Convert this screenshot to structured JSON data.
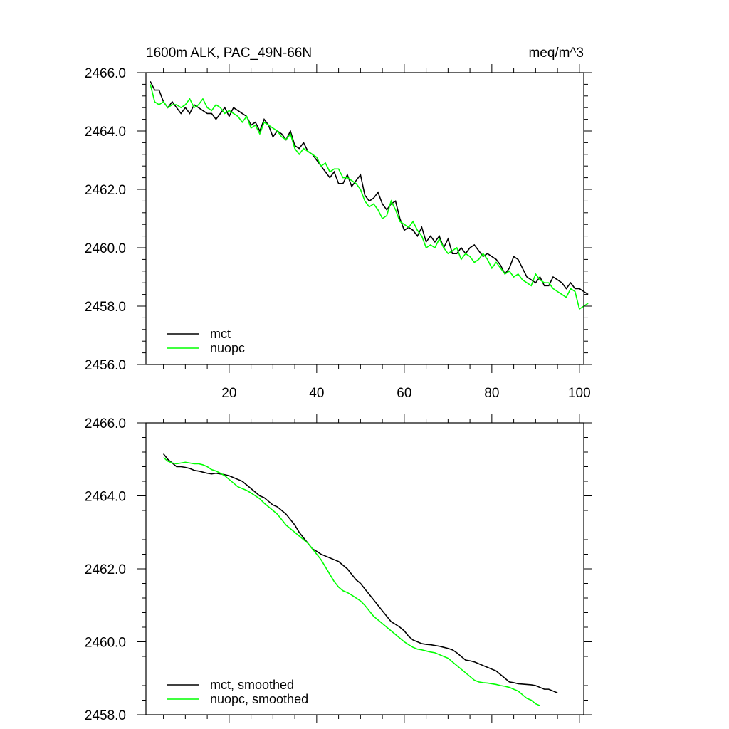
{
  "chart_data": [
    {
      "type": "line",
      "title": "1600m ALK, PAC_49N-66N",
      "units": "meq/m^3",
      "xlim": [
        1,
        101
      ],
      "ylim": [
        2456.0,
        2466.0
      ],
      "x_ticks": [
        20,
        40,
        60,
        80,
        100
      ],
      "y_ticks": [
        2456.0,
        2458.0,
        2460.0,
        2462.0,
        2464.0,
        2466.0
      ],
      "y_tick_labels": [
        "2456.0",
        "2458.0",
        "2460.0",
        "2462.0",
        "2464.0",
        "2466.0"
      ],
      "x_tick_labels": [
        "20",
        "40",
        "60",
        "80",
        "100"
      ],
      "legend": [
        "mct",
        "nuopc"
      ],
      "legend_position": "bottom-left",
      "x_start": 2,
      "x_step": 1,
      "series": [
        {
          "name": "mct",
          "color": "#000000",
          "values": [
            2465.7,
            2465.4,
            2465.4,
            2465.0,
            2464.8,
            2465.0,
            2464.8,
            2464.6,
            2464.8,
            2464.6,
            2464.9,
            2464.8,
            2464.7,
            2464.6,
            2464.6,
            2464.4,
            2464.6,
            2464.8,
            2464.5,
            2464.8,
            2464.7,
            2464.6,
            2464.5,
            2464.2,
            2464.3,
            2464.0,
            2464.4,
            2464.2,
            2463.8,
            2464.0,
            2463.9,
            2463.7,
            2464.0,
            2463.5,
            2463.4,
            2463.6,
            2463.3,
            2463.2,
            2463.0,
            2462.8,
            2462.6,
            2462.4,
            2462.6,
            2462.2,
            2462.2,
            2462.5,
            2462.1,
            2462.3,
            2462.5,
            2461.8,
            2461.6,
            2461.7,
            2461.9,
            2461.5,
            2461.3,
            2461.5,
            2461.6,
            2461.0,
            2460.6,
            2460.7,
            2460.6,
            2460.4,
            2460.7,
            2460.2,
            2460.4,
            2460.2,
            2460.4,
            2460.0,
            2460.3,
            2459.8,
            2459.8,
            2460.0,
            2459.8,
            2460.0,
            2460.1,
            2459.9,
            2459.7,
            2459.8,
            2459.7,
            2459.6,
            2459.4,
            2459.1,
            2459.3,
            2459.7,
            2459.6,
            2459.3,
            2459.0,
            2458.9,
            2458.8,
            2459.0,
            2458.7,
            2458.7,
            2459.0,
            2458.9,
            2458.8,
            2458.6,
            2458.8,
            2458.6,
            2458.6,
            2458.5,
            2458.4
          ]
        },
        {
          "name": "nuopc",
          "color": "#00ff00",
          "values": [
            2465.6,
            2465.0,
            2464.9,
            2465.0,
            2464.8,
            2464.9,
            2464.9,
            2464.8,
            2464.9,
            2465.1,
            2464.8,
            2464.9,
            2465.1,
            2464.8,
            2464.7,
            2464.9,
            2464.8,
            2464.6,
            2464.7,
            2464.6,
            2464.5,
            2464.3,
            2464.5,
            2464.1,
            2464.2,
            2463.9,
            2464.3,
            2464.2,
            2464.1,
            2464.0,
            2463.8,
            2463.7,
            2463.9,
            2463.4,
            2463.2,
            2463.4,
            2463.3,
            2463.2,
            2463.1,
            2462.8,
            2462.9,
            2462.6,
            2462.7,
            2462.7,
            2462.4,
            2462.4,
            2462.3,
            2462.2,
            2462.0,
            2461.6,
            2461.4,
            2461.5,
            2461.3,
            2461.0,
            2461.1,
            2461.6,
            2461.3,
            2460.9,
            2460.8,
            2460.7,
            2460.9,
            2460.6,
            2460.4,
            2460.0,
            2460.1,
            2460.0,
            2460.3,
            2460.0,
            2459.8,
            2459.9,
            2460.0,
            2459.6,
            2459.8,
            2459.7,
            2459.5,
            2459.6,
            2459.8,
            2459.6,
            2459.3,
            2459.5,
            2459.3,
            2459.1,
            2459.2,
            2459.0,
            2459.1,
            2458.9,
            2458.8,
            2458.7,
            2459.1,
            2458.9,
            2458.8,
            2458.8,
            2458.6,
            2458.5,
            2458.4,
            2458.3,
            2458.6,
            2458.5,
            2457.9,
            2458.0,
            2458.1
          ]
        }
      ]
    },
    {
      "type": "line",
      "title": "",
      "xlim": [
        1,
        101
      ],
      "ylim": [
        2458.0,
        2466.0
      ],
      "x_ticks": [
        20,
        40,
        60,
        80,
        100
      ],
      "y_ticks": [
        2458.0,
        2460.0,
        2462.0,
        2464.0,
        2466.0
      ],
      "y_tick_labels": [
        "2458.0",
        "2460.0",
        "2462.0",
        "2464.0",
        "2466.0"
      ],
      "legend": [
        "mct, smoothed",
        "nuopc, smoothed"
      ],
      "legend_position": "bottom-left",
      "x_start": 5,
      "x_step": 1,
      "series": [
        {
          "name": "mct, smoothed",
          "color": "#000000",
          "values": [
            2465.15,
            2465.0,
            2464.9,
            2464.8,
            2464.8,
            2464.78,
            2464.75,
            2464.7,
            2464.68,
            2464.65,
            2464.62,
            2464.6,
            2464.62,
            2464.6,
            2464.58,
            2464.55,
            2464.5,
            2464.45,
            2464.4,
            2464.3,
            2464.2,
            2464.1,
            2464.0,
            2463.95,
            2463.85,
            2463.75,
            2463.7,
            2463.6,
            2463.5,
            2463.35,
            2463.2,
            2463.0,
            2462.85,
            2462.7,
            2462.55,
            2462.48,
            2462.4,
            2462.35,
            2462.3,
            2462.25,
            2462.2,
            2462.1,
            2462.0,
            2461.85,
            2461.7,
            2461.6,
            2461.45,
            2461.3,
            2461.15,
            2461.0,
            2460.85,
            2460.7,
            2460.55,
            2460.48,
            2460.4,
            2460.3,
            2460.15,
            2460.05,
            2460.0,
            2459.95,
            2459.93,
            2459.92,
            2459.9,
            2459.88,
            2459.85,
            2459.82,
            2459.78,
            2459.7,
            2459.6,
            2459.5,
            2459.48,
            2459.45,
            2459.4,
            2459.35,
            2459.3,
            2459.25,
            2459.2,
            2459.1,
            2459.0,
            2458.9,
            2458.88,
            2458.85,
            2458.84,
            2458.83,
            2458.82,
            2458.8,
            2458.75,
            2458.7,
            2458.7,
            2458.65,
            2458.6
          ]
        },
        {
          "name": "nuopc, smoothed",
          "color": "#00ff00",
          "values": [
            2465.05,
            2464.95,
            2464.9,
            2464.88,
            2464.9,
            2464.92,
            2464.9,
            2464.88,
            2464.88,
            2464.85,
            2464.8,
            2464.72,
            2464.68,
            2464.62,
            2464.55,
            2464.45,
            2464.35,
            2464.25,
            2464.2,
            2464.15,
            2464.08,
            2464.0,
            2463.92,
            2463.8,
            2463.7,
            2463.6,
            2463.5,
            2463.35,
            2463.2,
            2463.1,
            2463.0,
            2462.9,
            2462.8,
            2462.7,
            2462.55,
            2462.4,
            2462.25,
            2462.05,
            2461.85,
            2461.65,
            2461.5,
            2461.4,
            2461.35,
            2461.28,
            2461.2,
            2461.12,
            2461.0,
            2460.85,
            2460.7,
            2460.6,
            2460.5,
            2460.4,
            2460.3,
            2460.2,
            2460.1,
            2460.0,
            2459.92,
            2459.85,
            2459.8,
            2459.78,
            2459.75,
            2459.72,
            2459.7,
            2459.65,
            2459.6,
            2459.55,
            2459.45,
            2459.35,
            2459.25,
            2459.15,
            2459.05,
            2458.95,
            2458.9,
            2458.88,
            2458.87,
            2458.85,
            2458.83,
            2458.8,
            2458.78,
            2458.75,
            2458.7,
            2458.65,
            2458.55,
            2458.45,
            2458.4,
            2458.3,
            2458.25
          ]
        }
      ]
    }
  ]
}
